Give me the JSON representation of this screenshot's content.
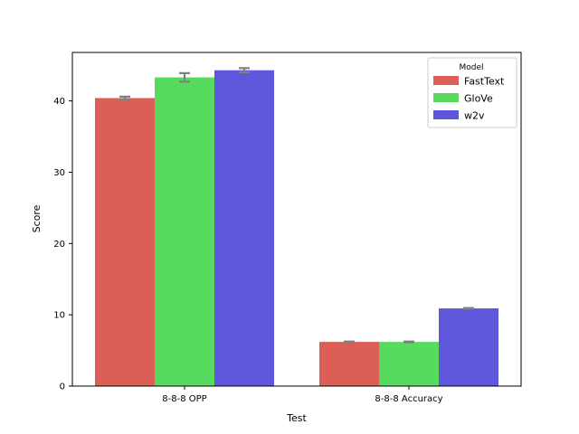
{
  "chart_data": {
    "type": "bar",
    "title": "",
    "xlabel": "Test",
    "ylabel": "Score",
    "categories": [
      "8-8-8 OPP",
      "8-8-8 Accuracy"
    ],
    "ylim": [
      0,
      46.8
    ],
    "yticks": [
      0,
      10,
      20,
      30,
      40
    ],
    "grid": false,
    "legend": {
      "title": "Model",
      "position": "top-right"
    },
    "series": [
      {
        "name": "FastText",
        "color": "#db5f57",
        "values": [
          40.4,
          6.2
        ],
        "error": [
          0.2,
          0.05
        ]
      },
      {
        "name": "GloVe",
        "color": "#57db5f",
        "values": [
          43.3,
          6.2
        ],
        "error": [
          0.6,
          0.05
        ]
      },
      {
        "name": "w2v",
        "color": "#5f57db",
        "values": [
          44.3,
          10.9
        ],
        "error": [
          0.3,
          0.05
        ]
      }
    ],
    "error_bar_color": "#808080"
  }
}
